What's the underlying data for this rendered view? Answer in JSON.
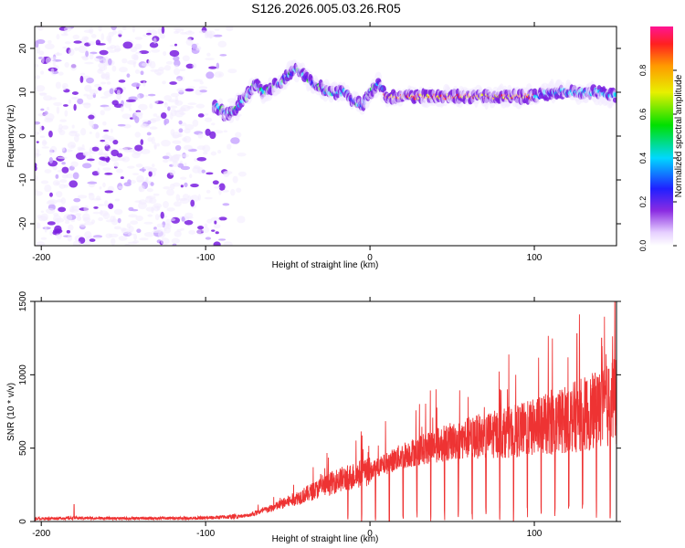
{
  "title": "S126.2026.005.03.26.R05",
  "colors": {
    "snr_line": "#ee3333",
    "axis": "#000000",
    "spectro_low": "#e8d8ff",
    "spectro_mid": "#7a1fe0",
    "spectro_band": "#00dcdc",
    "spectro_peak": "#ff2a6d"
  },
  "chart_data": [
    {
      "id": "spectrogram",
      "type": "heatmap",
      "xlabel": "Height of straight line (km)",
      "ylabel": "Frequency (Hz)",
      "xlim": [
        -204,
        150
      ],
      "ylim": [
        -25,
        25
      ],
      "x_ticks": [
        -200,
        -100,
        0,
        100
      ],
      "x_tick_labels": [
        "-200",
        "-100",
        "0",
        "100"
      ],
      "y_ticks": [
        -20,
        -10,
        0,
        10,
        20
      ],
      "y_tick_labels": [
        "-20",
        "-10",
        "0",
        "10",
        "20"
      ],
      "colorbar": {
        "label": "Normalized spectral amplitude",
        "range": [
          0,
          1
        ],
        "ticks": [
          0.0,
          0.2,
          0.4,
          0.6,
          0.8
        ],
        "tick_labels": [
          "0.0",
          "0.2",
          "0.4",
          "0.6",
          "0.8"
        ]
      },
      "noise_region_km": [
        -204,
        -75
      ],
      "ridge": {
        "x_km": [
          -95,
          -90,
          -85,
          -80,
          -75,
          -70,
          -65,
          -60,
          -55,
          -50,
          -45,
          -40,
          -35,
          -30,
          -25,
          -20,
          -15,
          -10,
          -5,
          0,
          5,
          10,
          20,
          40,
          60,
          80,
          100,
          110,
          120,
          130,
          140,
          150
        ],
        "freq_hz": [
          7,
          6,
          5,
          7,
          9,
          12,
          10,
          11,
          12,
          14,
          15,
          14,
          12,
          11,
          10,
          10,
          10,
          8,
          7,
          10,
          12,
          9,
          9,
          9,
          9,
          9,
          9,
          10,
          10,
          10,
          10,
          9
        ]
      },
      "peak_band_km": [
        8,
        100
      ],
      "peak_band_freq_hz": 9
    },
    {
      "id": "snr",
      "type": "line",
      "xlabel": "Height of straight line (km)",
      "ylabel": "SNR (10 * v/v)",
      "xlim": [
        -204,
        150
      ],
      "ylim": [
        0,
        1500
      ],
      "x_ticks": [
        -200,
        -100,
        0,
        100
      ],
      "x_tick_labels": [
        "-200",
        "-100",
        "0",
        "100"
      ],
      "y_ticks": [
        0,
        500,
        1000,
        1500
      ],
      "y_tick_labels": [
        "0",
        "500",
        "1000",
        "1500"
      ],
      "trend": {
        "x_km": [
          -204,
          -180,
          -150,
          -100,
          -75,
          -60,
          -40,
          -20,
          0,
          20,
          40,
          60,
          80,
          100,
          120,
          140,
          150
        ],
        "snr": [
          20,
          25,
          22,
          25,
          40,
          90,
          180,
          280,
          340,
          450,
          520,
          570,
          600,
          640,
          700,
          760,
          820
        ]
      },
      "notable_peaks": [
        {
          "x_km": -180,
          "snr": 115
        },
        {
          "x_km": 126,
          "snr": 1280
        },
        {
          "x_km": 141,
          "snr": 1250
        },
        {
          "x_km": 149,
          "snr": 1500
        }
      ]
    }
  ]
}
